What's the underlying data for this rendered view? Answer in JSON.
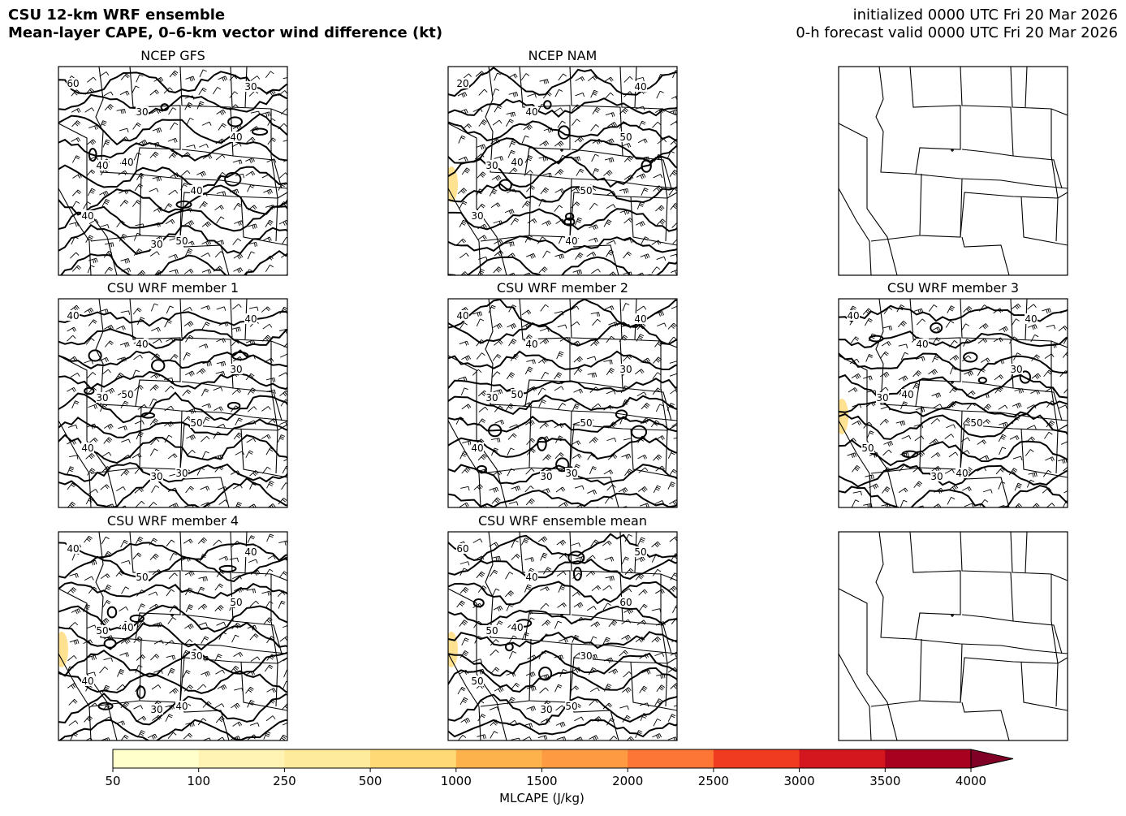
{
  "header": {
    "title": "CSU 12-km WRF ensemble",
    "subtitle": "Mean-layer CAPE, 0–6-km vector wind difference (kt)",
    "init": "initialized 0000 UTC Fri 20 Mar 2026",
    "valid": "0-h forecast valid 0000 UTC Fri 20 Mar 2026"
  },
  "panels": [
    {
      "title": "NCEP GFS",
      "contour_labels": [
        "60",
        "40",
        "50",
        "40",
        "40",
        "30",
        "40",
        "30",
        "40",
        "30"
      ]
    },
    {
      "title": "NCEP NAM",
      "contour_labels": [
        "20",
        "40",
        "40",
        "50",
        "30",
        "40",
        "50",
        "40",
        "30"
      ]
    },
    {
      "title": "CSU WRF member 1",
      "contour_labels": [
        "40",
        "50",
        "30",
        "30",
        "40",
        "40",
        "50",
        "40",
        "30",
        "30"
      ]
    },
    {
      "title": "CSU WRF member 2",
      "contour_labels": [
        "40",
        "50",
        "30",
        "30",
        "40",
        "40",
        "50",
        "40",
        "30",
        "30"
      ]
    },
    {
      "title": "CSU WRF member 3",
      "contour_labels": [
        "40",
        "40",
        "40",
        "30",
        "50",
        "40",
        "50",
        "40",
        "30",
        "30"
      ]
    },
    {
      "title": "CSU WRF member 4",
      "contour_labels": [
        "40",
        "40",
        "40",
        "50",
        "40",
        "50",
        "30",
        "40",
        "50",
        "30"
      ]
    },
    {
      "title": "CSU WRF ensemble mean",
      "contour_labels": [
        "60",
        "40",
        "50",
        "60",
        "50",
        "40",
        "30",
        "50",
        "50",
        "30"
      ]
    }
  ],
  "colorbar": {
    "label": "MLCAPE (J/kg)",
    "levels": [
      50,
      100,
      250,
      500,
      1000,
      1500,
      2000,
      2500,
      3000,
      3500,
      4000
    ],
    "colors": [
      "#ffffcc",
      "#fff4b4",
      "#feeb9c",
      "#fed976",
      "#feb24c",
      "#fd9a42",
      "#fd7636",
      "#f03b20",
      "#d4161f",
      "#a8001f"
    ],
    "extend_color": "#800026"
  }
}
